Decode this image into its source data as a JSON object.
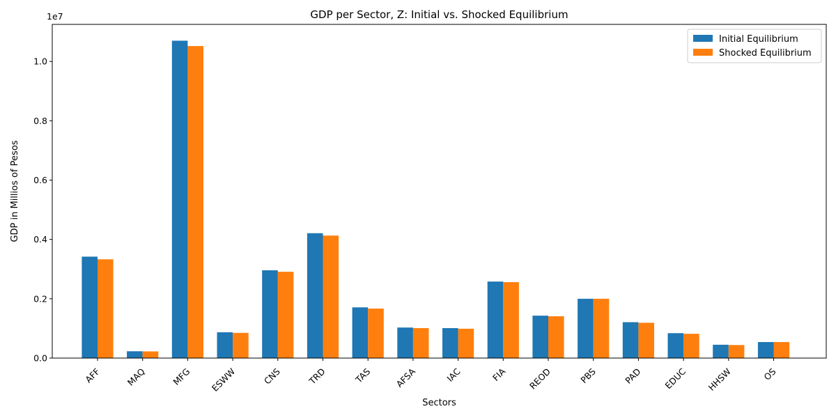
{
  "chart_data": {
    "type": "bar",
    "title": "GDP per Sector, Z: Initial vs. Shocked Equilibrium",
    "xlabel": "Sectors",
    "ylabel": "GDP in Millios of Pesos",
    "y_offset_label": "1e7",
    "y_ticks": [
      "0.0",
      "0.2",
      "0.4",
      "0.6",
      "0.8",
      "1.0"
    ],
    "ylim": [
      0,
      11250000
    ],
    "categories": [
      "AFF",
      "MAQ",
      "MFG",
      "ESWW",
      "CNS",
      "TRD",
      "TAS",
      "AFSA",
      "IAC",
      "FIA",
      "REOD",
      "PBS",
      "PAD",
      "EDUC",
      "HHSW",
      "OS"
    ],
    "series": [
      {
        "name": "Initial Equilibrium",
        "color": "#1f77b4",
        "values": [
          3420000,
          230000,
          10700000,
          870000,
          2960000,
          4210000,
          1710000,
          1030000,
          1010000,
          2580000,
          1430000,
          2000000,
          1210000,
          840000,
          450000,
          540000
        ]
      },
      {
        "name": "Shocked Equilibrium",
        "color": "#ff7f0e",
        "values": [
          3330000,
          225000,
          10520000,
          850000,
          2910000,
          4130000,
          1670000,
          1010000,
          990000,
          2560000,
          1410000,
          2000000,
          1190000,
          820000,
          440000,
          540000
        ]
      }
    ],
    "legend_position": "top-right",
    "grid": false
  }
}
